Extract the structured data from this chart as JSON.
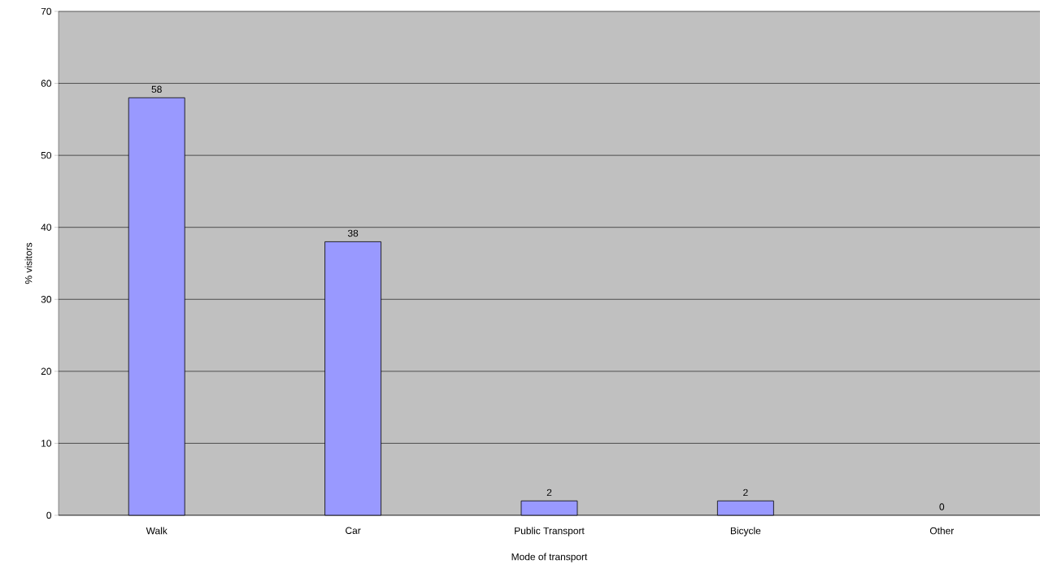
{
  "chart_data": {
    "type": "bar",
    "xlabel": "Mode of transport",
    "ylabel": "% visitors",
    "categories": [
      "Walk",
      "Car",
      "Public Transport",
      "Bicycle",
      "Other"
    ],
    "values": [
      58,
      38,
      2,
      2,
      0
    ],
    "color": "#9999ff",
    "data_labels": true,
    "ylim": [
      0,
      70
    ],
    "yticks": [
      0,
      10,
      20,
      30,
      40,
      50,
      60,
      70
    ],
    "grid": "y"
  }
}
